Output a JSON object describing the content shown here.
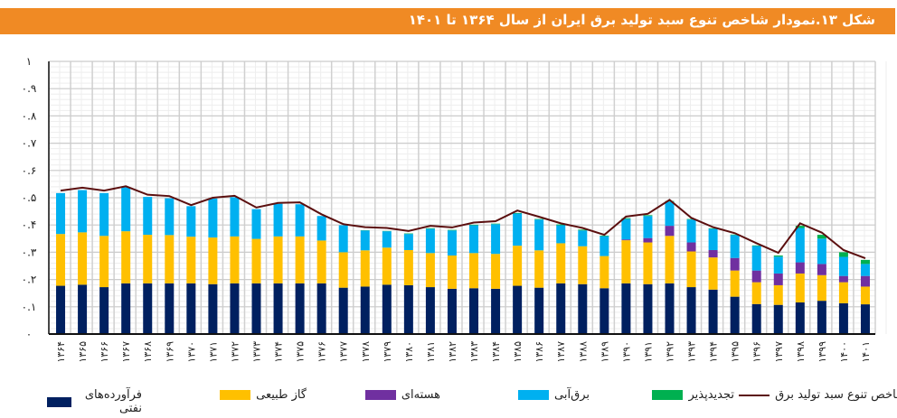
{
  "title": "شکل ۱۳.نمودار شاخص تنوع سبد تولید برق ایران از سال ۱۳۶۴ تا ۱۴۰۱",
  "chart_data": {
    "type": "bar",
    "stacked": true,
    "title": "شکل ۱۳.نمودار شاخص تنوع سبد تولید برق ایران از سال ۱۳۶۴ تا ۱۴۰۱",
    "xlabel": "",
    "ylabel": "",
    "ylim": [
      0,
      1
    ],
    "yticks": [
      "۰",
      "۰.۱",
      "۰.۲",
      "۰.۳",
      "۰.۴",
      "۰.۵",
      "۰.۶",
      "۰.۷",
      "۰.۸",
      "۰.۹",
      "۱"
    ],
    "grid": true,
    "legend_position": "bottom",
    "categories": [
      "۱۳۶۴",
      "۱۳۶۵",
      "۱۳۶۶",
      "۱۳۶۷",
      "۱۳۶۸",
      "۱۳۶۹",
      "۱۳۷۰",
      "۱۳۷۱",
      "۱۳۷۲",
      "۱۳۷۳",
      "۱۳۷۴",
      "۱۳۷۵",
      "۱۳۷۶",
      "۱۳۷۷",
      "۱۳۷۸",
      "۱۳۷۹",
      "۱۳۸۰",
      "۱۳۸۱",
      "۱۳۸۲",
      "۱۳۸۳",
      "۱۳۸۴",
      "۱۳۸۵",
      "۱۳۸۶",
      "۱۳۸۷",
      "۱۳۸۸",
      "۱۳۸۹",
      "۱۳۹۰",
      "۱۳۹۱",
      "۱۳۹۲",
      "۱۳۹۳",
      "۱۳۹۴",
      "۱۳۹۵",
      "۱۳۹۶",
      "۱۳۹۷",
      "۱۳۹۸",
      "۱۳۹۹",
      "۱۴۰۰",
      "۱۴۰۱"
    ],
    "series": [
      {
        "name": "فرآورده‌های نفتی",
        "type": "bar",
        "color": "#002060",
        "values": [
          0.177,
          0.181,
          0.172,
          0.186,
          0.186,
          0.186,
          0.186,
          0.183,
          0.186,
          0.186,
          0.186,
          0.186,
          0.186,
          0.17,
          0.174,
          0.181,
          0.179,
          0.172,
          0.166,
          0.168,
          0.166,
          0.177,
          0.17,
          0.186,
          0.183,
          0.168,
          0.186,
          0.183,
          0.186,
          0.172,
          0.163,
          0.137,
          0.11,
          0.107,
          0.116,
          0.122,
          0.113,
          0.109
        ]
      },
      {
        "name": "گاز طبیعی",
        "type": "bar",
        "color": "#FFC000",
        "values": [
          0.19,
          0.192,
          0.188,
          0.191,
          0.178,
          0.177,
          0.171,
          0.171,
          0.172,
          0.163,
          0.172,
          0.172,
          0.157,
          0.13,
          0.133,
          0.136,
          0.129,
          0.125,
          0.122,
          0.129,
          0.128,
          0.147,
          0.137,
          0.147,
          0.139,
          0.118,
          0.158,
          0.153,
          0.174,
          0.131,
          0.118,
          0.096,
          0.08,
          0.072,
          0.106,
          0.094,
          0.077,
          0.065
        ]
      },
      {
        "name": "هسته‌ای",
        "type": "bar",
        "color": "#7030A0",
        "values": [
          0,
          0,
          0,
          0,
          0,
          0,
          0,
          0,
          0,
          0,
          0,
          0,
          0,
          0,
          0,
          0,
          0,
          0,
          0,
          0,
          0,
          0,
          0,
          0,
          0,
          0,
          0.003,
          0.016,
          0.037,
          0.033,
          0.027,
          0.046,
          0.043,
          0.043,
          0.041,
          0.041,
          0.023,
          0.039
        ]
      },
      {
        "name": "برق‌آبی",
        "type": "bar",
        "color": "#00B0F0",
        "values": [
          0.15,
          0.155,
          0.157,
          0.162,
          0.139,
          0.135,
          0.112,
          0.143,
          0.144,
          0.109,
          0.12,
          0.118,
          0.09,
          0.099,
          0.073,
          0.06,
          0.059,
          0.089,
          0.092,
          0.102,
          0.109,
          0.118,
          0.113,
          0.066,
          0.058,
          0.073,
          0.075,
          0.081,
          0.089,
          0.084,
          0.078,
          0.084,
          0.09,
          0.062,
          0.126,
          0.093,
          0.07,
          0.044
        ]
      },
      {
        "name": "تجدیدپذیر",
        "type": "bar",
        "color": "#00B050",
        "values": [
          0,
          0,
          0,
          0,
          0,
          0,
          0,
          0,
          0,
          0,
          0,
          0,
          0,
          0,
          0.001,
          0.001,
          0.002,
          0.002,
          0.002,
          0.002,
          0.002,
          0.002,
          0.002,
          0.003,
          0.003,
          0.002,
          0.003,
          0.003,
          0.002,
          0.002,
          0.002,
          0.002,
          0.002,
          0.004,
          0.008,
          0.014,
          0.017,
          0.015
        ]
      },
      {
        "name": "شاخص تنوع سبد تولید برق",
        "type": "line",
        "color": "#5B0F0F",
        "values": [
          0.526,
          0.537,
          0.526,
          0.542,
          0.511,
          0.506,
          0.473,
          0.5,
          0.507,
          0.464,
          0.481,
          0.483,
          0.439,
          0.403,
          0.392,
          0.389,
          0.378,
          0.397,
          0.391,
          0.409,
          0.414,
          0.453,
          0.43,
          0.406,
          0.389,
          0.364,
          0.431,
          0.441,
          0.492,
          0.426,
          0.392,
          0.37,
          0.333,
          0.298,
          0.406,
          0.372,
          0.308,
          0.278
        ]
      }
    ]
  }
}
